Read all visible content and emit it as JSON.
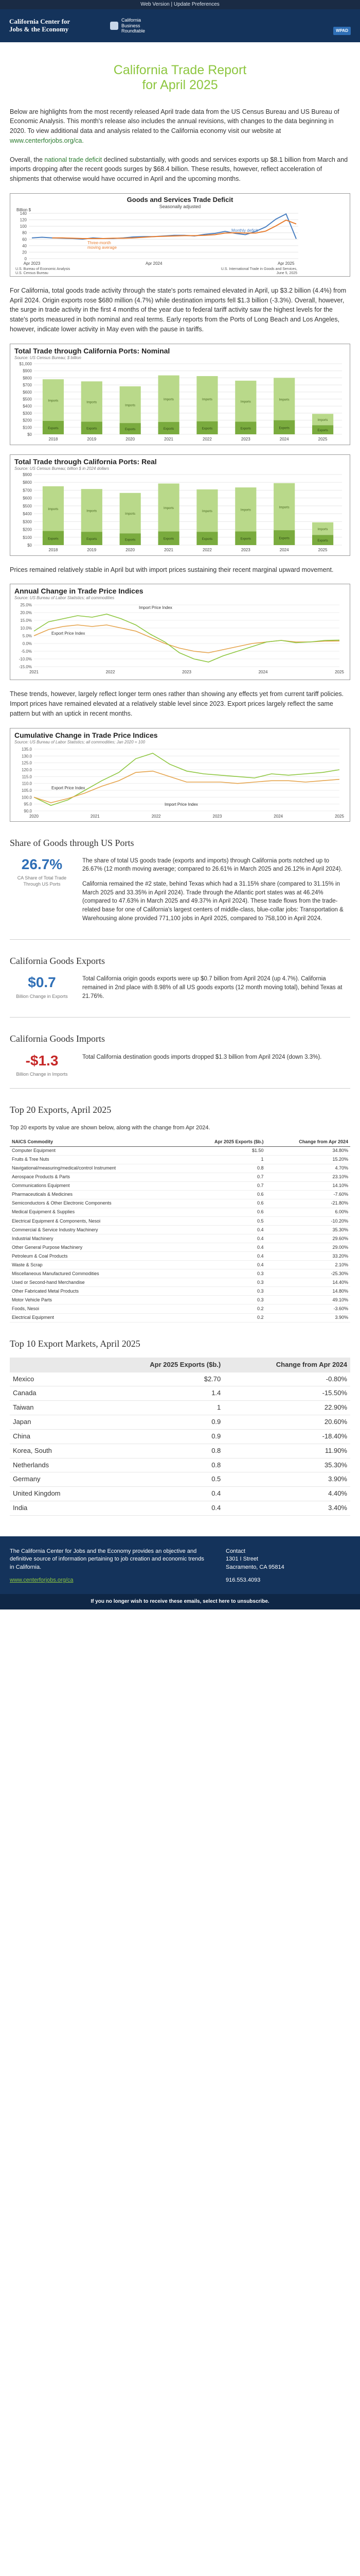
{
  "topbar": {
    "web_version": "Web Version",
    "sep": " | ",
    "preferences": "Update Preferences"
  },
  "header": {
    "brand_line1": "California Center for",
    "brand_line2": "Jobs & the Economy",
    "partner_line1": "California",
    "partner_line2": "Business",
    "partner_line3": "Roundtable",
    "badge": "WPAD"
  },
  "title": {
    "line1": "California Trade Report",
    "line2": "for April 2025"
  },
  "intro": {
    "p1": "Below are highlights from the most recently released April trade data from the US Census Bureau and US Bureau of Economic Analysis. This month's release also includes the annual revisions, with changes to the data beginning in 2020. To view additional data and analysis related to the California economy visit our website at",
    "link": "www.centerforjobs.org/ca.",
    "p2_pre": "Overall, the",
    "p2_link": "national trade deficit",
    "p2_post": "declined substantially, with goods and services exports up $8.1 billion from March and imports dropping after the recent goods surges by $68.4 billion. These results, however, reflect acceleration of shipments that otherwise would have occurred in April and the upcoming months."
  },
  "deficit_chart": {
    "chart_data": {
      "type": "line",
      "title": "Goods and Services Trade Deficit",
      "subtitle": "Seasonally adjusted",
      "ylabel": "Billion $",
      "ylim": [
        0,
        140
      ],
      "yticks": [
        0,
        20,
        40,
        60,
        80,
        100,
        120,
        140
      ],
      "xticks": [
        "Apr 2023",
        "Apr 2024",
        "Apr 2025"
      ],
      "series": [
        {
          "name": "Monthly deficit",
          "color": "#4a7fc1",
          "values": [
            64,
            66,
            64,
            63,
            62,
            60,
            64,
            62,
            62,
            64,
            67,
            68,
            68,
            70,
            72,
            72,
            70,
            75,
            78,
            84,
            78,
            74,
            84,
            98,
            122,
            138,
            61
          ]
        },
        {
          "name": "Three-month moving average",
          "color": "#e87d2f",
          "values": [
            null,
            null,
            64,
            64,
            63,
            62,
            62,
            62,
            63,
            63,
            64,
            66,
            68,
            69,
            70,
            71,
            71,
            72,
            74,
            79,
            80,
            79,
            79,
            85,
            101,
            119,
            107
          ]
        }
      ],
      "label_monthly": "Monthly deficit",
      "label_avg_1": "Three-month",
      "label_avg_2": "moving average",
      "source_left_1": "U.S. Bureau of Economic Analysis",
      "source_left_2": "U.S. Census Bureau",
      "source_right_1": "U.S. International Trade in Goods and Services,",
      "source_right_2": "June 5, 2025"
    }
  },
  "ca_text": {
    "p3": "For California, total goods trade activity through the state's ports remained elevated in April, up $3.2 billion (4.4%) from April 2024. Origin exports rose $680 million (4.7%) while destination imports fell $1.3 billion (-3.3%). Overall, however, the surge in trade activity in the first 4 months of the year due to federal tariff activity saw the highest levels for the state's ports measured in both nominal and real terms. Early reports from the Ports of Long Beach and Los Angeles, however, indicate lower activity in May even with the pause in tariffs."
  },
  "nominal_chart": {
    "chart_data": {
      "type": "bar",
      "title": "Total Trade through California Ports:  Nominal",
      "subtitle": "Source: US Census Bureau; $ billion",
      "categories": [
        "2018",
        "2019",
        "2020",
        "2021",
        "2022",
        "2023",
        "2024",
        "2025"
      ],
      "yticks": [
        "$0",
        "$100",
        "$200",
        "$300",
        "$400",
        "$500",
        "$600",
        "$700",
        "$800",
        "$900",
        "$1,000"
      ],
      "ylim": [
        0,
        1000
      ],
      "series": [
        {
          "name": "Imports",
          "color": "#b9d98a",
          "values": [
            590,
            570,
            520,
            660,
            640,
            580,
            600,
            160
          ]
        },
        {
          "name": "Exports",
          "color": "#7aab3e",
          "values": [
            190,
            180,
            160,
            175,
            185,
            180,
            200,
            130
          ]
        }
      ],
      "imports_label": "Imports",
      "exports_label": "Exports"
    }
  },
  "real_chart": {
    "chart_data": {
      "type": "bar",
      "title": "Total Trade through California Ports:  Real",
      "subtitle": "Source: US Census Bureau; billion $ in 2024 dollars",
      "categories": [
        "2018",
        "2019",
        "2020",
        "2021",
        "2022",
        "2023",
        "2024",
        "2025"
      ],
      "yticks": [
        "$0",
        "$100",
        "$200",
        "$300",
        "$400",
        "$500",
        "$600",
        "$700",
        "$800",
        "$900"
      ],
      "ylim": [
        0,
        900
      ],
      "series": [
        {
          "name": "Imports",
          "color": "#b9d98a",
          "values": [
            570,
            545,
            515,
            610,
            540,
            560,
            600,
            160
          ]
        },
        {
          "name": "Exports",
          "color": "#7aab3e",
          "values": [
            180,
            170,
            150,
            175,
            170,
            175,
            190,
            130
          ]
        }
      ],
      "imports_label": "Imports",
      "exports_label": "Exports"
    }
  },
  "prices_text": {
    "p4": "Prices remained relatively stable in April but with import prices sustaining their recent marginal upward movement."
  },
  "annual_chart": {
    "chart_data": {
      "type": "line",
      "title": "Annual Change in Trade Price Indices",
      "subtitle": "Source: US Bureau of Labor Statistics; all commodities",
      "yticks": [
        "25.0%",
        "20.0%",
        "15.0%",
        "10.0%",
        "5.0%",
        "0.0%",
        "-5.0%",
        "-10.0%",
        "-15.0%"
      ],
      "ylim": [
        -15,
        25
      ],
      "xticks": [
        "2021",
        "2022",
        "2023",
        "2024",
        "2025"
      ],
      "series": [
        {
          "name": "Import Price Index",
          "color": "#e5a34b",
          "values": [
            5,
            9,
            11,
            12,
            11,
            12,
            10,
            8,
            4,
            0,
            -3,
            -5,
            -6,
            -4,
            -2,
            0,
            1,
            2,
            1,
            1,
            1.5,
            1.6
          ]
        },
        {
          "name": "Export Price Index",
          "color": "#8dc63f",
          "values": [
            8,
            14,
            16,
            18,
            17,
            19,
            16,
            12,
            6,
            1,
            -6,
            -10,
            -12,
            -8,
            -5,
            -2,
            1,
            2,
            0.5,
            1,
            2,
            2.2
          ]
        }
      ],
      "label_import": "Import Price Index",
      "label_export": "Export Price Index"
    }
  },
  "trends_text": {
    "p5": "These trends, however, largely reflect longer term ones rather than showing any effects yet from current tariff policies. Import prices have remained elevated at a relatively stable level since 2023. Export prices largely reflect the same pattern but with an uptick in recent months."
  },
  "cumulative_chart": {
    "chart_data": {
      "type": "line",
      "title": "Cumulative Change in Trade Price Indices",
      "subtitle": "Source: US Bureau of Labor Statistics; all commodities; Jan 2020 = 100",
      "yticks": [
        "135.0",
        "130.0",
        "125.0",
        "120.0",
        "115.0",
        "110.0",
        "105.0",
        "100.0",
        "95.0",
        "90.0"
      ],
      "ylim": [
        90,
        135
      ],
      "xticks": [
        "2020",
        "2021",
        "2022",
        "2023",
        "2024",
        "2025"
      ],
      "series": [
        {
          "name": "Export Price Index",
          "color": "#8dc63f",
          "values": [
            100,
            94,
            98,
            105,
            112,
            118,
            128,
            132,
            124,
            119,
            117,
            116,
            115,
            114,
            117,
            116,
            117,
            118,
            120
          ]
        },
        {
          "name": "Import Price Index",
          "color": "#e5a34b",
          "values": [
            100,
            96,
            99,
            103,
            108,
            112,
            118,
            119,
            115,
            111,
            111,
            111,
            110,
            111,
            112,
            112,
            111,
            112,
            113
          ]
        }
      ],
      "label_export": "Export Price Index",
      "label_import": "Import Price Index"
    }
  },
  "share": {
    "heading": "Share of Goods through US Ports",
    "big": "26.7%",
    "cap": "CA Share of Total Trade Through US Ports",
    "p1": "The share of total US goods trade (exports and imports) through California ports notched up to 26.67% (12 month moving average; compared to 26.61% in March 2025 and 26.12% in April 2024).",
    "p2": "California remained the #2 state, behind Texas which had a 31.15% share (compared to 31.15% in March 2025 and 33.35% in April 2024). Trade through the Atlantic port states was at 46.24% (compared to 47.63% in March 2025 and 49.37% in April 2024). These trade flows from the trade-related base for one of California's largest centers of middle-class, blue-collar jobs: Transportation & Warehousing alone provided 771,100 jobs in April 2025, compared to 758,100 in April 2024."
  },
  "exports": {
    "heading": "California Goods Exports",
    "big": "$0.7",
    "cap": "Billion Change in Exports",
    "text": "Total California origin goods exports were up $0.7 billion from April 2024 (up 4.7%). California remained in 2nd place with 8.98% of all US goods exports (12 month moving total), behind Texas at 21.76%."
  },
  "imports": {
    "heading": "California Goods Imports",
    "big": "-$1.3",
    "cap": "Billion Change in Imports",
    "text": "Total California destination goods imports dropped $1.3 billion from April 2024 (down 3.3%)."
  },
  "top20": {
    "heading": "Top 20 Exports, April 2025",
    "intro": "Top 20 exports by value are shown below, along with the change from Apr 2024.",
    "col1": "NAICS Commodity",
    "col2": "Apr 2025 Exports ($b.)",
    "col3": "Change from Apr 2024",
    "rows": [
      [
        "Computer Equipment",
        "$1.50",
        "34.80%"
      ],
      [
        "Fruits & Tree Nuts",
        "1",
        "15.20%"
      ],
      [
        "Navigational/measuring/medical/control Instrument",
        "0.8",
        "4.70%"
      ],
      [
        "Aerospace Products & Parts",
        "0.7",
        "23.10%"
      ],
      [
        "Communications Equipment",
        "0.7",
        "14.10%"
      ],
      [
        "Pharmaceuticals & Medicines",
        "0.6",
        "-7.60%"
      ],
      [
        "Semiconductors & Other Electronic Components",
        "0.6",
        "-21.80%"
      ],
      [
        "Medical Equipment & Supplies",
        "0.6",
        "6.00%"
      ],
      [
        "Electrical Equipment & Components, Nesoi",
        "0.5",
        "-10.20%"
      ],
      [
        "Commercial & Service Industry Machinery",
        "0.4",
        "35.30%"
      ],
      [
        "Industrial Machinery",
        "0.4",
        "29.60%"
      ],
      [
        "Other General Purpose Machinery",
        "0.4",
        "29.00%"
      ],
      [
        "Petroleum & Coal Products",
        "0.4",
        "33.20%"
      ],
      [
        "Waste & Scrap",
        "0.4",
        "2.10%"
      ],
      [
        "Miscellaneous Manufactured Commodities",
        "0.3",
        "-25.30%"
      ],
      [
        "Used or Second-hand Merchandise",
        "0.3",
        "14.40%"
      ],
      [
        "Other Fabricated Metal Products",
        "0.3",
        "14.80%"
      ],
      [
        "Motor Vehicle Parts",
        "0.3",
        "49.10%"
      ],
      [
        "Foods, Nesoi",
        "0.2",
        "-3.60%"
      ],
      [
        "Electrical Equipment",
        "0.2",
        "3.90%"
      ]
    ]
  },
  "top10": {
    "heading": "Top 10 Export Markets, April 2025",
    "col1": "",
    "col2": "Apr 2025 Exports ($b.)",
    "col3": "Change from Apr 2024",
    "rows": [
      [
        "Mexico",
        "$2.70",
        "-0.80%"
      ],
      [
        "Canada",
        "1.4",
        "-15.50%"
      ],
      [
        "Taiwan",
        "1",
        "22.90%"
      ],
      [
        "Japan",
        "0.9",
        "20.60%"
      ],
      [
        "China",
        "0.9",
        "-18.40%"
      ],
      [
        "Korea, South",
        "0.8",
        "11.90%"
      ],
      [
        "Netherlands",
        "0.8",
        "35.30%"
      ],
      [
        "Germany",
        "0.5",
        "3.90%"
      ],
      [
        "United Kingdom",
        "0.4",
        "4.40%"
      ],
      [
        "India",
        "0.4",
        "3.40%"
      ]
    ]
  },
  "footer": {
    "about": "The California Center for Jobs and the Economy provides an objective and definitive source of information pertaining to job creation and economic trends in California.",
    "link": "www.centerforjobs.org/ca",
    "contact_label": "Contact",
    "addr1": "1301 I Street",
    "addr2": "Sacramento, CA 95814",
    "phone": "916.553.4093",
    "unsub": "If you no longer wish to receive these emails, select here to unsubscribe."
  }
}
